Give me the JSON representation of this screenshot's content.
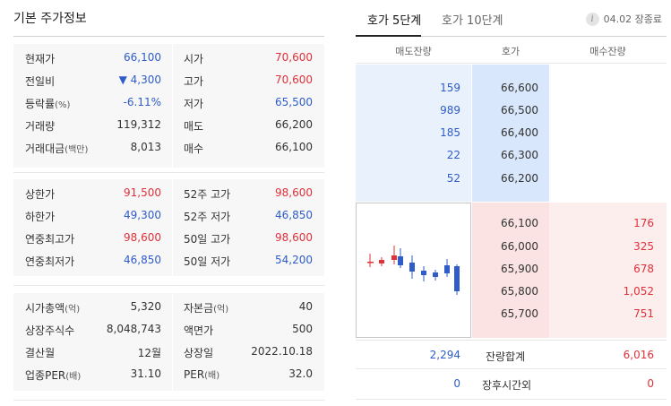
{
  "basic_info": {
    "title": "기본 주가정보",
    "rows": [
      {
        "left_label": "현재가",
        "left_value": "66,100",
        "left_color": "blue",
        "right_label": "시가",
        "right_value": "70,600",
        "right_color": "red"
      },
      {
        "left_label": "전일비",
        "left_value": "▼ 4,300",
        "left_color": "blue",
        "right_label": "고가",
        "right_value": "70,600",
        "right_color": "red"
      },
      {
        "left_label": "등락률",
        "left_unit": "(%)",
        "left_value": "-6.11%",
        "left_color": "blue",
        "right_label": "저가",
        "right_value": "65,500",
        "right_color": "blue"
      },
      {
        "left_label": "거래량",
        "left_value": "119,312",
        "left_color": "dark",
        "right_label": "매도",
        "right_value": "66,200",
        "right_color": "dark"
      },
      {
        "left_label": "거래대금",
        "left_unit": "(백만)",
        "left_value": "8,013",
        "left_color": "dark",
        "right_label": "매수",
        "right_value": "66,100",
        "right_color": "dark"
      },
      {
        "left_label": "상한가",
        "left_value": "91,500",
        "left_color": "red",
        "right_label": "52주 고가",
        "right_value": "98,600",
        "right_color": "red"
      },
      {
        "left_label": "하한가",
        "left_value": "49,300",
        "left_color": "blue",
        "right_label": "52주 저가",
        "right_value": "46,850",
        "right_color": "blue"
      },
      {
        "left_label": "연중최고가",
        "left_value": "98,600",
        "left_color": "red",
        "right_label": "50일 고가",
        "right_value": "98,600",
        "right_color": "red"
      },
      {
        "left_label": "연중최저가",
        "left_value": "46,850",
        "left_color": "blue",
        "right_label": "50일 저가",
        "right_value": "54,200",
        "right_color": "blue"
      },
      {
        "left_label": "시가총액",
        "left_unit": "(억)",
        "left_value": "5,320",
        "left_color": "dark",
        "right_label": "자본금",
        "right_unit": "(억)",
        "right_value": "40",
        "right_color": "dark"
      },
      {
        "left_label": "상장주식수",
        "left_value": "8,048,743",
        "left_color": "dark",
        "right_label": "액면가",
        "right_value": "500",
        "right_color": "dark"
      },
      {
        "left_label": "결산월",
        "left_value": "12월",
        "left_color": "dark",
        "right_label": "상장일",
        "right_value": "2022.10.18",
        "right_color": "dark"
      },
      {
        "left_label": "업종PER",
        "left_unit": "(배)",
        "left_value": "31.10",
        "left_color": "dark",
        "right_label": "PER",
        "right_unit": "(배)",
        "right_value": "32.0",
        "right_color": "dark"
      }
    ]
  },
  "orderbook": {
    "tabs": [
      "호가 5단계",
      "호가 10단계"
    ],
    "info_icon": "info-icon",
    "time_label": "04.02 장종료",
    "headers": {
      "ask_qty": "매도잔량",
      "price": "호가",
      "bid_qty": "매수잔량"
    },
    "asks": [
      {
        "qty": "159",
        "price": "66,600"
      },
      {
        "qty": "989",
        "price": "66,500"
      },
      {
        "qty": "185",
        "price": "66,400"
      },
      {
        "qty": "22",
        "price": "66,300"
      },
      {
        "qty": "52",
        "price": "66,200"
      }
    ],
    "bids": [
      {
        "price": "66,100",
        "qty": "176"
      },
      {
        "price": "66,000",
        "qty": "325"
      },
      {
        "price": "65,900",
        "qty": "678"
      },
      {
        "price": "65,800",
        "qty": "1,052"
      },
      {
        "price": "65,700",
        "qty": "751"
      }
    ],
    "total": {
      "ask": "2,294",
      "label": "잔량합계",
      "bid": "6,016"
    },
    "after_hours": {
      "ask": "0",
      "label": "장후시간외",
      "bid": "0"
    }
  },
  "colors": {
    "red": "#e0303a",
    "blue": "#2f5cc8",
    "dark": "#333333"
  }
}
